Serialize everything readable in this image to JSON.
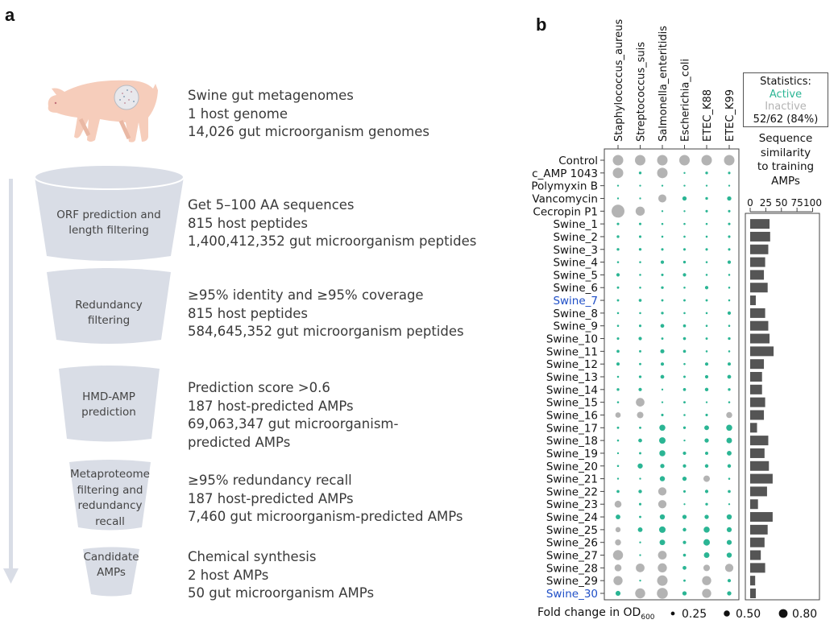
{
  "panel_a": {
    "letter": "a",
    "source": {
      "lines": [
        "Swine gut metagenomes",
        "1 host genome",
        "14,026 gut microorganism genomes"
      ]
    },
    "steps": [
      {
        "label": [
          "ORF prediction and",
          "length filtering"
        ],
        "lines": [
          "Get 5–100 AA sequences",
          "815 host peptides",
          "1,400,412,352 gut microorganism peptides"
        ]
      },
      {
        "label": [
          "Redundancy",
          "filtering"
        ],
        "lines": [
          "≥95% identity and ≥95% coverage",
          "815 host peptides",
          "584,645,352 gut microorganism peptides"
        ]
      },
      {
        "label": [
          "HMD-AMP",
          "prediction"
        ],
        "lines": [
          "Prediction score >0.6",
          "187 host-predicted AMPs",
          "69,063,347 gut microorganism-",
          "predicted AMPs"
        ]
      },
      {
        "label": [
          "Metaproteome",
          "filtering and",
          "redundancy",
          "recall"
        ],
        "lines": [
          "≥95% redundancy recall",
          "187 host-predicted AMPs",
          "7,460 gut microorganism-predicted AMPs"
        ]
      },
      {
        "label": [
          "Candidate",
          "AMPs"
        ],
        "lines": [
          "Chemical synthesis",
          "2 host AMPs",
          "50 gut microorganism AMPs"
        ]
      }
    ],
    "colors": {
      "funnel": "#d9dde6",
      "arrow": "#d9dde6",
      "pig": "#f6cdbb"
    }
  },
  "panel_b": {
    "letter": "b",
    "statistics": {
      "title": "Statistics:",
      "active": "Active",
      "inactive": "Inactive",
      "summary": "52/62 (84%)"
    },
    "similarity_title": [
      "Sequence",
      "similarity",
      "to training",
      "AMPs"
    ],
    "size_legend": {
      "title": "Fold change in OD",
      "subscript": "600",
      "values": [
        0.25,
        0.5,
        0.8
      ],
      "labels": [
        "0.25",
        "0.50",
        "0.80"
      ]
    }
  },
  "chart_data": [
    {
      "type": "scatter",
      "subtype": "dot-matrix",
      "x_categories": [
        "Staphylococcus_aureus",
        "Streptococcus_suis",
        "Salmonella_enteritidis",
        "Escherichia_coli",
        "ETEC_K88",
        "ETEC_K99"
      ],
      "y_categories": [
        "Control",
        "c_AMP 1043",
        "Polymyxin B",
        "Vancomycin",
        "Cecropin P1",
        "Swine_1",
        "Swine_2",
        "Swine_3",
        "Swine_4",
        "Swine_5",
        "Swine_6",
        "Swine_7",
        "Swine_8",
        "Swine_9",
        "Swine_10",
        "Swine_11",
        "Swine_12",
        "Swine_13",
        "Swine_14",
        "Swine_15",
        "Swine_16",
        "Swine_17",
        "Swine_18",
        "Swine_19",
        "Swine_20",
        "Swine_21",
        "Swine_22",
        "Swine_23",
        "Swine_24",
        "Swine_25",
        "Swine_26",
        "Swine_27",
        "Swine_28",
        "Swine_29",
        "Swine_30"
      ],
      "highlighted_rows": [
        "Swine_7",
        "Swine_30"
      ],
      "size_metric": "Fold change in OD600",
      "color_legend": {
        "A": "Active",
        "I": "Inactive"
      },
      "colors": {
        "A": "#2bb594",
        "I": "#b3b3b3",
        "highlight": "#1f4fc7"
      },
      "values": [
        [
          1.0,
          1.0,
          1.0,
          1.0,
          1.0,
          1.0
        ],
        [
          1.0,
          0.12,
          1.0,
          0.03,
          0.12,
          0.1
        ],
        [
          0.03,
          0.03,
          0.03,
          0.03,
          0.03,
          0.03
        ],
        [
          0.03,
          0.03,
          0.73,
          0.3,
          0.12,
          0.3
        ],
        [
          1.27,
          0.85,
          0.03,
          0.03,
          0.1,
          0.1
        ],
        [
          0.1,
          0.1,
          0.05,
          0.05,
          0.05,
          0.1
        ],
        [
          0.12,
          0.1,
          0.05,
          0.05,
          0.05,
          0.1
        ],
        [
          0.12,
          0.12,
          0.1,
          0.1,
          0.1,
          0.1
        ],
        [
          0.05,
          0.05,
          0.2,
          0.12,
          0.05,
          0.2
        ],
        [
          0.2,
          0.05,
          0.1,
          0.2,
          0.05,
          0.05
        ],
        [
          0.08,
          0.05,
          0.12,
          0.05,
          0.2,
          0.05
        ],
        [
          0.08,
          0.15,
          0.08,
          0.08,
          0.08,
          0.05
        ],
        [
          0.05,
          0.05,
          0.12,
          0.05,
          0.05,
          0.2
        ],
        [
          0.05,
          0.1,
          0.25,
          0.15,
          0.05,
          0.05
        ],
        [
          0.1,
          0.2,
          0.08,
          0.15,
          0.08,
          0.12
        ],
        [
          0.15,
          0.08,
          0.28,
          0.15,
          0.05,
          0.05
        ],
        [
          0.18,
          0.08,
          0.2,
          0.05,
          0.2,
          0.18
        ],
        [
          0.05,
          0.12,
          0.25,
          0.08,
          0.2,
          0.25
        ],
        [
          0.12,
          0.2,
          0.03,
          0.15,
          0.22,
          0.12
        ],
        [
          0.05,
          0.79,
          0.03,
          0.08,
          0.03,
          0.05
        ],
        [
          0.43,
          0.55,
          0.1,
          0.05,
          0.1,
          0.5
        ],
        [
          0.08,
          0.08,
          0.5,
          0.12,
          0.35,
          0.5
        ],
        [
          0.05,
          0.25,
          0.55,
          0.03,
          0.3,
          0.45
        ],
        [
          0.03,
          0.08,
          0.5,
          0.2,
          0.18,
          0.35
        ],
        [
          0.05,
          0.4,
          0.3,
          0.2,
          0.22,
          0.22
        ],
        [
          0.03,
          0.03,
          0.4,
          0.3,
          0.55,
          0.05
        ],
        [
          0.15,
          0.22,
          0.75,
          0.1,
          0.2,
          0.15
        ],
        [
          0.6,
          0.1,
          0.75,
          0.02,
          0.12,
          0.03
        ],
        [
          0.35,
          0.08,
          0.4,
          0.3,
          0.3,
          0.4
        ],
        [
          0.4,
          0.35,
          0.55,
          0.22,
          0.5,
          0.38
        ],
        [
          0.5,
          0.03,
          0.45,
          0.2,
          0.55,
          0.38
        ],
        [
          0.95,
          0.03,
          0.8,
          0.15,
          0.45,
          0.4
        ],
        [
          0.6,
          0.8,
          0.85,
          0.25,
          0.55,
          0.75
        ],
        [
          0.85,
          0.03,
          1.0,
          0.08,
          0.85,
          0.2
        ],
        [
          0.38,
          0.95,
          1.05,
          0.3,
          0.85,
          0.3
        ]
      ],
      "status": [
        [
          "I",
          "I",
          "I",
          "I",
          "I",
          "I"
        ],
        [
          "I",
          "A",
          "I",
          "A",
          "A",
          "A"
        ],
        [
          "A",
          "A",
          "A",
          "A",
          "A",
          "A"
        ],
        [
          "A",
          "A",
          "I",
          "A",
          "A",
          "A"
        ],
        [
          "I",
          "I",
          "A",
          "A",
          "A",
          "A"
        ],
        [
          "A",
          "A",
          "A",
          "A",
          "A",
          "A"
        ],
        [
          "A",
          "A",
          "A",
          "A",
          "A",
          "A"
        ],
        [
          "A",
          "A",
          "A",
          "A",
          "A",
          "A"
        ],
        [
          "A",
          "A",
          "A",
          "A",
          "A",
          "A"
        ],
        [
          "A",
          "A",
          "A",
          "A",
          "A",
          "A"
        ],
        [
          "A",
          "A",
          "A",
          "A",
          "A",
          "A"
        ],
        [
          "A",
          "A",
          "A",
          "A",
          "A",
          "A"
        ],
        [
          "A",
          "A",
          "A",
          "A",
          "A",
          "A"
        ],
        [
          "A",
          "A",
          "A",
          "A",
          "A",
          "A"
        ],
        [
          "A",
          "A",
          "A",
          "A",
          "A",
          "A"
        ],
        [
          "A",
          "A",
          "A",
          "A",
          "A",
          "A"
        ],
        [
          "A",
          "A",
          "A",
          "A",
          "A",
          "A"
        ],
        [
          "A",
          "A",
          "A",
          "A",
          "A",
          "A"
        ],
        [
          "A",
          "A",
          "A",
          "A",
          "A",
          "A"
        ],
        [
          "A",
          "I",
          "A",
          "A",
          "A",
          "A"
        ],
        [
          "I",
          "I",
          "A",
          "A",
          "A",
          "I"
        ],
        [
          "A",
          "A",
          "A",
          "A",
          "A",
          "A"
        ],
        [
          "A",
          "A",
          "A",
          "A",
          "A",
          "A"
        ],
        [
          "A",
          "A",
          "A",
          "A",
          "A",
          "A"
        ],
        [
          "A",
          "A",
          "A",
          "A",
          "A",
          "A"
        ],
        [
          "A",
          "A",
          "A",
          "A",
          "I",
          "A"
        ],
        [
          "A",
          "A",
          "I",
          "A",
          "A",
          "A"
        ],
        [
          "I",
          "A",
          "I",
          "A",
          "A",
          "A"
        ],
        [
          "A",
          "A",
          "A",
          "A",
          "A",
          "A"
        ],
        [
          "I",
          "A",
          "A",
          "A",
          "A",
          "A"
        ],
        [
          "I",
          "A",
          "A",
          "A",
          "A",
          "A"
        ],
        [
          "I",
          "A",
          "I",
          "A",
          "A",
          "A"
        ],
        [
          "I",
          "I",
          "I",
          "A",
          "I",
          "I"
        ],
        [
          "I",
          "A",
          "I",
          "A",
          "I",
          "A"
        ],
        [
          "A",
          "I",
          "I",
          "A",
          "I",
          "A"
        ]
      ]
    },
    {
      "type": "bar",
      "orientation": "horizontal",
      "title": "Sequence similarity to training AMPs",
      "categories": [
        "Swine_1",
        "Swine_2",
        "Swine_3",
        "Swine_4",
        "Swine_5",
        "Swine_6",
        "Swine_7",
        "Swine_8",
        "Swine_9",
        "Swine_10",
        "Swine_11",
        "Swine_12",
        "Swine_13",
        "Swine_14",
        "Swine_15",
        "Swine_16",
        "Swine_17",
        "Swine_18",
        "Swine_19",
        "Swine_20",
        "Swine_21",
        "Swine_22",
        "Swine_23",
        "Swine_24",
        "Swine_25",
        "Swine_26",
        "Swine_27",
        "Swine_28",
        "Swine_29",
        "Swine_30"
      ],
      "values": [
        31,
        32,
        29,
        24,
        22,
        28,
        9,
        24,
        29,
        31,
        37.5,
        22,
        19,
        19,
        24,
        22,
        11,
        29,
        23,
        30,
        36,
        27,
        12.5,
        36,
        28,
        23,
        17,
        24,
        8,
        9
      ],
      "xlim": [
        0,
        100
      ],
      "ticks": [
        0,
        25,
        50,
        75,
        100
      ],
      "tick_labels": [
        "0",
        "25",
        "50",
        "75",
        "100"
      ],
      "color": "#555555"
    }
  ]
}
